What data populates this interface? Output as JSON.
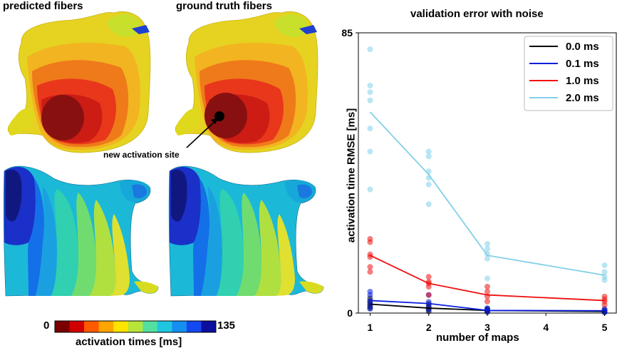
{
  "left_panel": {
    "title_predicted": "predicted fibers",
    "title_ground_truth": "ground truth fibers",
    "annotation": "new activation site",
    "colorbar": {
      "min_label": "0",
      "max_label": "135",
      "label": "activation times [ms]",
      "colors": [
        "#7a0000",
        "#d00000",
        "#ff5a00",
        "#ffa500",
        "#ffe400",
        "#b8e53a",
        "#52e0a0",
        "#1fc6e0",
        "#1590f0",
        "#1448f0",
        "#0c0e9e"
      ]
    }
  },
  "chart_data": {
    "type": "line",
    "title": "validation error with noise",
    "xlabel": "number of maps",
    "ylabel": "activation time RMSE [ms]",
    "x_ticks": [
      1,
      2,
      3,
      4,
      5
    ],
    "y_ticks": [
      0,
      85
    ],
    "xlim": [
      0.8,
      5.2
    ],
    "ylim": [
      0,
      85
    ],
    "grid": false,
    "legend_position": "top-right",
    "series": [
      {
        "name": "0.0 ms",
        "color": "#000000",
        "x": [
          1,
          2,
          3,
          5
        ],
        "mean": [
          2.7,
          1.5,
          0.8,
          0.5
        ],
        "points": [
          [
            1,
            1.5
          ],
          [
            1,
            2.0
          ],
          [
            1,
            2.8
          ],
          [
            1,
            3.5
          ],
          [
            1,
            4.5
          ],
          [
            2,
            0.5
          ],
          [
            2,
            1.2
          ],
          [
            2,
            2.0
          ],
          [
            2,
            2.8
          ],
          [
            3,
            0.3
          ],
          [
            3,
            0.6
          ],
          [
            3,
            1.0
          ],
          [
            3,
            1.3
          ],
          [
            5,
            0.2
          ],
          [
            5,
            0.5
          ],
          [
            5,
            0.9
          ]
        ]
      },
      {
        "name": "0.1 ms",
        "color": "#0a1ee0",
        "x": [
          1,
          2,
          3,
          5
        ],
        "mean": [
          3.8,
          2.9,
          0.8,
          0.7
        ],
        "points": [
          [
            1,
            1.3
          ],
          [
            1,
            2.5
          ],
          [
            1,
            3.7
          ],
          [
            1,
            5.5
          ],
          [
            1,
            6.5
          ],
          [
            2,
            1.0
          ],
          [
            2,
            2.0
          ],
          [
            2,
            3.4
          ],
          [
            2,
            5.5
          ],
          [
            3,
            0.5
          ],
          [
            3,
            0.9
          ],
          [
            3,
            1.5
          ],
          [
            5,
            0.3
          ],
          [
            5,
            0.7
          ],
          [
            5,
            1.3
          ]
        ]
      },
      {
        "name": "1.0 ms",
        "color": "#ee1010",
        "x": [
          1,
          2,
          3,
          5
        ],
        "mean": [
          17.5,
          9.0,
          5.5,
          3.8
        ],
        "points": [
          [
            1,
            12.5
          ],
          [
            1,
            14.0
          ],
          [
            1,
            17.0
          ],
          [
            1,
            17.8
          ],
          [
            1,
            21.5
          ],
          [
            1,
            22.5
          ],
          [
            2,
            5.5
          ],
          [
            2,
            8.0
          ],
          [
            2,
            9.0
          ],
          [
            2,
            9.5
          ],
          [
            2,
            11.0
          ],
          [
            3,
            3.5
          ],
          [
            3,
            5.0
          ],
          [
            3,
            6.5
          ],
          [
            3,
            8.0
          ],
          [
            5,
            2.5
          ],
          [
            5,
            3.5
          ],
          [
            5,
            4.2
          ],
          [
            5,
            5.0
          ]
        ]
      },
      {
        "name": "2.0 ms",
        "color": "#82cfe8",
        "x": [
          1,
          2,
          3,
          5
        ],
        "mean": [
          61.0,
          42.0,
          17.5,
          11.5
        ],
        "points": [
          [
            1,
            80.0
          ],
          [
            1,
            69.0
          ],
          [
            1,
            67.0
          ],
          [
            1,
            64.5
          ],
          [
            1,
            56.0
          ],
          [
            1,
            49.0
          ],
          [
            1,
            37.5
          ],
          [
            2,
            49.0
          ],
          [
            2,
            47.5
          ],
          [
            2,
            43.0
          ],
          [
            2,
            41.0
          ],
          [
            2,
            39.0
          ],
          [
            2,
            33.0
          ],
          [
            3,
            21.0
          ],
          [
            3,
            19.5
          ],
          [
            3,
            18.0
          ],
          [
            3,
            16.5
          ],
          [
            3,
            10.5
          ],
          [
            5,
            14.5
          ],
          [
            5,
            12.5
          ],
          [
            5,
            11.0
          ],
          [
            5,
            10.0
          ]
        ]
      }
    ]
  }
}
